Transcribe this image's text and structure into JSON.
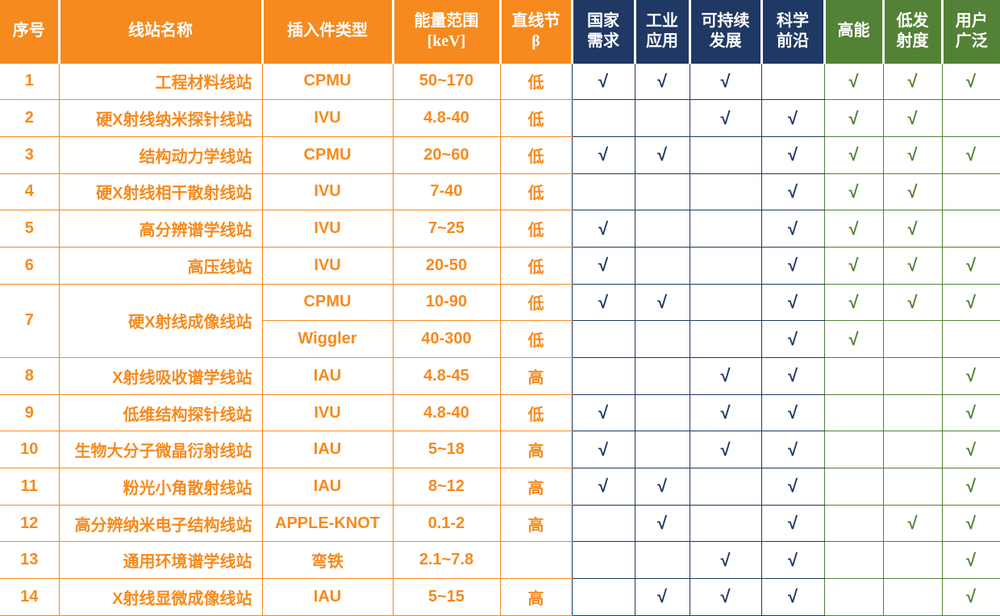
{
  "colors": {
    "orange": "#F68A1E",
    "navy": "#1F3864",
    "green": "#538135"
  },
  "check_symbol": "√",
  "columns": [
    {
      "id": "index",
      "group": "orange",
      "lines": [
        "序号"
      ]
    },
    {
      "id": "name",
      "group": "orange",
      "lines": [
        "线站名称"
      ]
    },
    {
      "id": "insertion-type",
      "group": "orange",
      "lines": [
        "插入件类型"
      ]
    },
    {
      "id": "energy-range",
      "group": "orange",
      "lines": [
        "能量范围",
        "[keV]"
      ]
    },
    {
      "id": "straight-section-beta",
      "group": "orange",
      "lines": [
        "直线节",
        "β"
      ]
    },
    {
      "id": "national-demand",
      "group": "navy",
      "lines": [
        "国家",
        "需求"
      ]
    },
    {
      "id": "industrial-application",
      "group": "navy",
      "lines": [
        "工业",
        "应用"
      ]
    },
    {
      "id": "sustainable-development",
      "group": "navy",
      "lines": [
        "可持续",
        "发展"
      ]
    },
    {
      "id": "science-frontier",
      "group": "navy",
      "lines": [
        "科学",
        "前沿"
      ]
    },
    {
      "id": "high-energy",
      "group": "green",
      "lines": [
        "高能"
      ]
    },
    {
      "id": "low-emittance",
      "group": "green",
      "lines": [
        "低发",
        "射度"
      ]
    },
    {
      "id": "wide-users",
      "group": "green",
      "lines": [
        "用户",
        "广泛"
      ]
    }
  ],
  "rows": [
    {
      "index": "1",
      "name": "工程材料线站",
      "sub": [
        {
          "insertion": "CPMU",
          "energy": "50~170",
          "beta": "低",
          "checks": [
            "√",
            "√",
            "√",
            "",
            "√",
            "√",
            "√"
          ]
        }
      ]
    },
    {
      "index": "2",
      "name": "硬X射线纳米探针线站",
      "sub": [
        {
          "insertion": "IVU",
          "energy": "4.8-40",
          "beta": "低",
          "checks": [
            "",
            "",
            "√",
            "√",
            "√",
            "√",
            ""
          ]
        }
      ]
    },
    {
      "index": "3",
      "name": "结构动力学线站",
      "sub": [
        {
          "insertion": "CPMU",
          "energy": "20~60",
          "beta": "低",
          "checks": [
            "√",
            "√",
            "",
            "√",
            "√",
            "√",
            "√"
          ]
        }
      ]
    },
    {
      "index": "4",
      "name": "硬X射线相干散射线站",
      "sub": [
        {
          "insertion": "IVU",
          "energy": "7-40",
          "beta": "低",
          "checks": [
            "",
            "",
            "",
            "√",
            "√",
            "√",
            ""
          ]
        }
      ]
    },
    {
      "index": "5",
      "name": "高分辨谱学线站",
      "sub": [
        {
          "insertion": "IVU",
          "energy": "7~25",
          "beta": "低",
          "checks": [
            "√",
            "",
            "",
            "√",
            "√",
            "√",
            ""
          ]
        }
      ]
    },
    {
      "index": "6",
      "name": "高压线站",
      "sub": [
        {
          "insertion": "IVU",
          "energy": "20-50",
          "beta": "低",
          "checks": [
            "√",
            "",
            "",
            "√",
            "√",
            "√",
            "√"
          ]
        }
      ]
    },
    {
      "index": "7",
      "name": "硬X射线成像线站",
      "sub": [
        {
          "insertion": "CPMU",
          "energy": "10-90",
          "beta": "低",
          "checks": [
            "√",
            "√",
            "",
            "√",
            "√",
            "√",
            "√"
          ]
        },
        {
          "insertion": "Wiggler",
          "energy": "40-300",
          "beta": "低",
          "checks": [
            "",
            "",
            "",
            "√",
            "√",
            "",
            ""
          ]
        }
      ]
    },
    {
      "index": "8",
      "name": "X射线吸收谱学线站",
      "sub": [
        {
          "insertion": "IAU",
          "energy": "4.8-45",
          "beta": "高",
          "checks": [
            "",
            "",
            "√",
            "√",
            "",
            "",
            "√"
          ]
        }
      ]
    },
    {
      "index": "9",
      "name": "低维结构探针线站",
      "sub": [
        {
          "insertion": "IVU",
          "energy": "4.8-40",
          "beta": "低",
          "checks": [
            "√",
            "",
            "√",
            "√",
            "",
            "",
            "√"
          ]
        }
      ]
    },
    {
      "index": "10",
      "name": "生物大分子微晶衍射线站",
      "sub": [
        {
          "insertion": "IAU",
          "energy": "5~18",
          "beta": "高",
          "checks": [
            "√",
            "",
            "√",
            "√",
            "",
            "",
            "√"
          ]
        }
      ]
    },
    {
      "index": "11",
      "name": "粉光小角散射线站",
      "sub": [
        {
          "insertion": "IAU",
          "energy": "8~12",
          "beta": "高",
          "checks": [
            "√",
            "√",
            "",
            "√",
            "",
            "",
            "√"
          ]
        }
      ]
    },
    {
      "index": "12",
      "name": "高分辨纳米电子结构线站",
      "sub": [
        {
          "insertion": "APPLE-KNOT",
          "energy": "0.1-2",
          "beta": "高",
          "checks": [
            "",
            "√",
            "",
            "√",
            "",
            "√",
            "√"
          ]
        }
      ]
    },
    {
      "index": "13",
      "name": "通用环境谱学线站",
      "sub": [
        {
          "insertion": "弯铁",
          "energy": "2.1~7.8",
          "beta": "",
          "checks": [
            "",
            "",
            "√",
            "√",
            "",
            "",
            "√"
          ]
        }
      ]
    },
    {
      "index": "14",
      "name": "X射线显微成像线站",
      "sub": [
        {
          "insertion": "IAU",
          "energy": "5~15",
          "beta": "高",
          "checks": [
            "",
            "√",
            "√",
            "√",
            "",
            "",
            "√"
          ]
        }
      ]
    }
  ]
}
